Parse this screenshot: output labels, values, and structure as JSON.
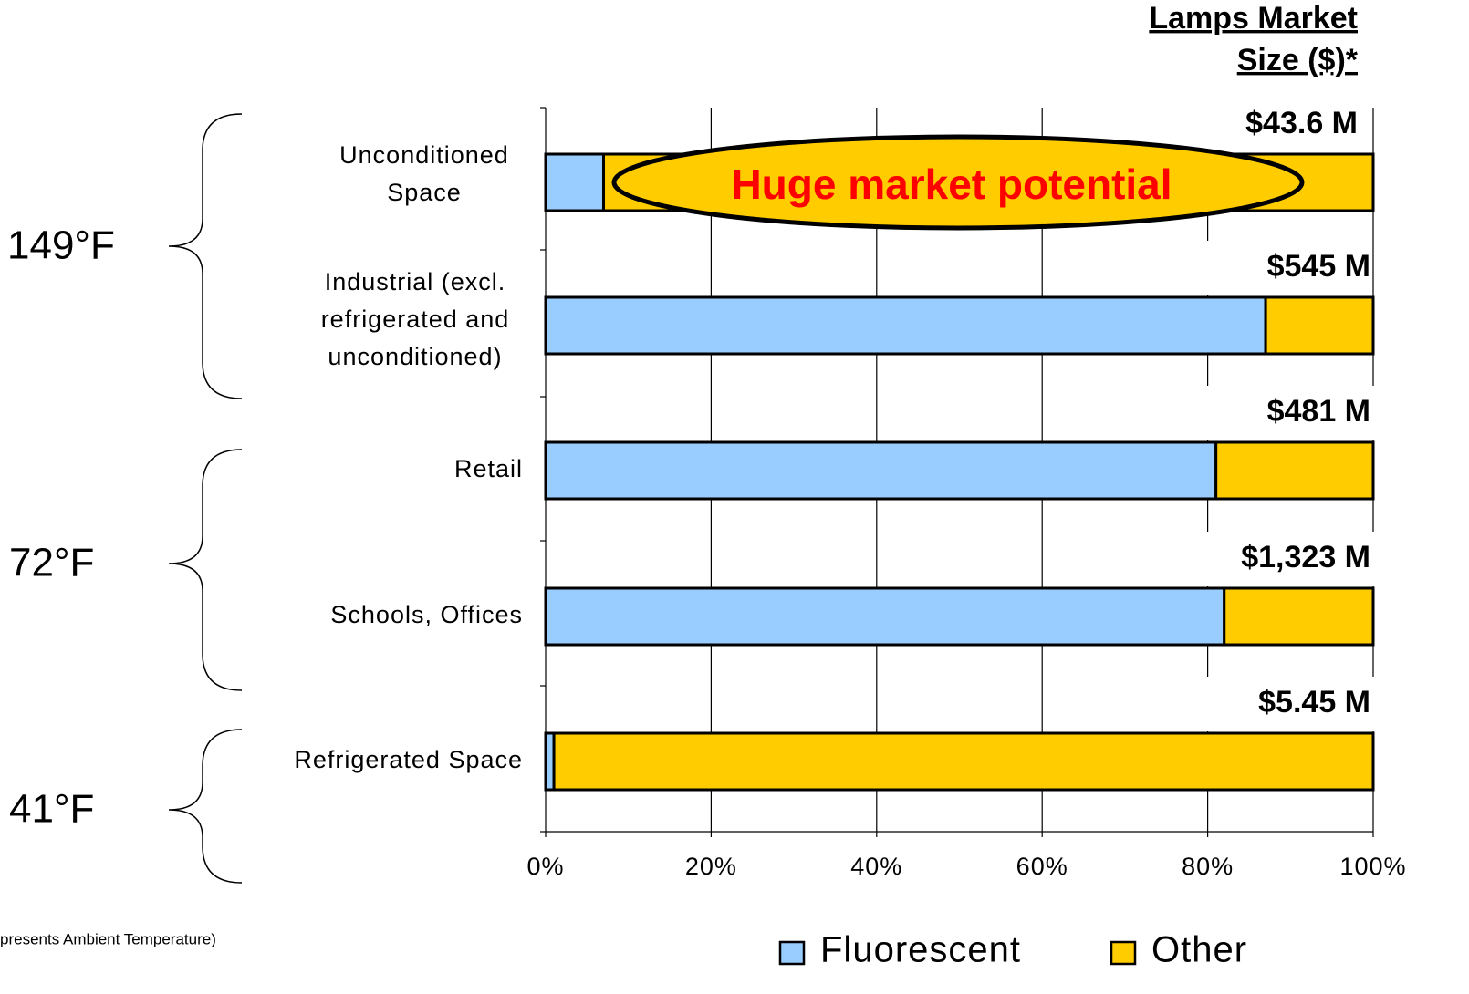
{
  "chart_data": {
    "type": "stacked-bar-horizontal",
    "size_header": [
      "Lamps Market",
      "Size ($)*"
    ],
    "categories": [
      [
        "Unconditioned",
        "Space"
      ],
      [
        "Industrial (excl.",
        "refrigerated and",
        "unconditioned)"
      ],
      [
        "Retail"
      ],
      [
        "Schools, Offices"
      ],
      [
        "Refrigerated Space"
      ]
    ],
    "series": [
      {
        "name": "Fluorescent",
        "color": "#99ccff",
        "values": [
          7,
          87,
          81,
          82,
          1
        ]
      },
      {
        "name": "Other",
        "color": "#ffcc00",
        "values": [
          93,
          13,
          19,
          18,
          99
        ]
      }
    ],
    "market_sizes": [
      "$43.6 M",
      "$545 M",
      "$481 M",
      "$1,323 M",
      "$5.45 M"
    ],
    "xlim": [
      0,
      100
    ],
    "xticks": [
      {
        "value": 0,
        "label": "0%"
      },
      {
        "value": 20,
        "label": "20%"
      },
      {
        "value": 40,
        "label": "40%"
      },
      {
        "value": 60,
        "label": "60%"
      },
      {
        "value": 80,
        "label": "80%"
      },
      {
        "value": 100,
        "label": "100%"
      }
    ],
    "grid": true,
    "annotation": "Huge market potential",
    "temperatures": [
      "149°F",
      "72°F",
      "41°F"
    ],
    "footnote": "presents Ambient Temperature)"
  }
}
